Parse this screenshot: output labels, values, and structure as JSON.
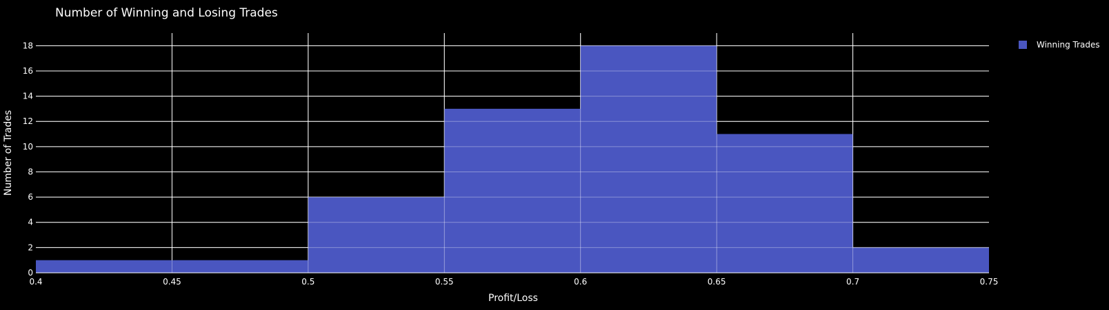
{
  "chart_data": {
    "type": "bar",
    "title": "Number of Winning and Losing Trades",
    "xlabel": "Profit/Loss",
    "ylabel": "Number of Trades",
    "xlim": [
      0.4,
      0.75
    ],
    "ylim": [
      0,
      19
    ],
    "x_ticks": [
      "0.4",
      "0.45",
      "0.5",
      "0.55",
      "0.6",
      "0.65",
      "0.7",
      "0.75"
    ],
    "y_ticks": [
      "0",
      "2",
      "4",
      "6",
      "8",
      "10",
      "12",
      "14",
      "16",
      "18"
    ],
    "grid": true,
    "legend_position": "top-right",
    "series": [
      {
        "name": "Winning Trades",
        "color": "#4a56c0",
        "bins": [
          {
            "x0": 0.4,
            "x1": 0.5,
            "value": 1
          },
          {
            "x0": 0.5,
            "x1": 0.55,
            "value": 6
          },
          {
            "x0": 0.55,
            "x1": 0.6,
            "value": 13
          },
          {
            "x0": 0.6,
            "x1": 0.65,
            "value": 18
          },
          {
            "x0": 0.65,
            "x1": 0.7,
            "value": 11
          },
          {
            "x0": 0.7,
            "x1": 0.75,
            "value": 2
          }
        ]
      }
    ]
  }
}
